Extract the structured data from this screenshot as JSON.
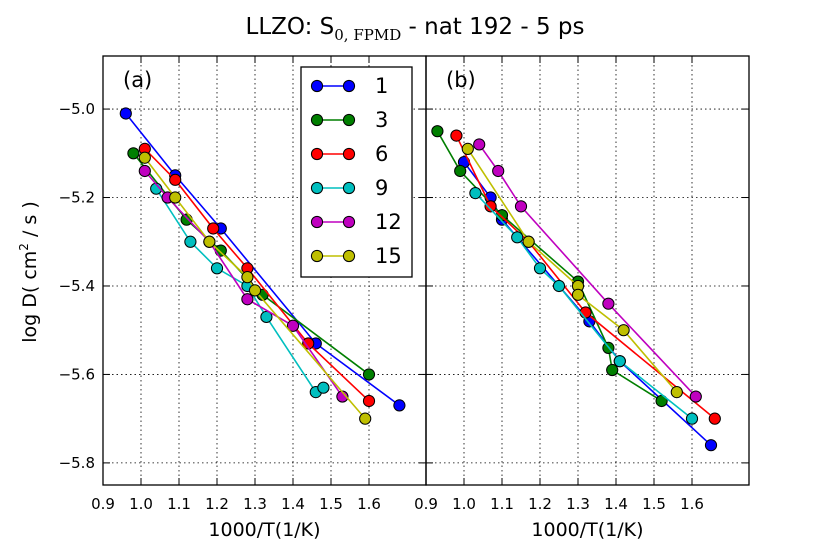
{
  "chart_data": [
    {
      "type": "line",
      "panel": "(a)",
      "title": "LLZO: S0,FPMD - nat 192 - 5 ps",
      "xlabel": "1000/T(1/K)",
      "ylabel": "log D( cm2 / s )",
      "xlim": [
        0.9,
        1.75
      ],
      "ylim": [
        -5.85,
        -4.88
      ],
      "grid": true,
      "legend": "top-right",
      "series": [
        {
          "name": "1",
          "color": "#0000ff",
          "x": [
            0.96,
            1.09,
            1.21,
            1.46,
            1.68
          ],
          "y": [
            -5.01,
            -5.15,
            -5.27,
            -5.53,
            -5.67
          ]
        },
        {
          "name": "3",
          "color": "#007f00",
          "x": [
            0.98,
            1.12,
            1.21,
            1.32,
            1.6
          ],
          "y": [
            -5.1,
            -5.25,
            -5.32,
            -5.42,
            -5.6
          ]
        },
        {
          "name": "6",
          "color": "#ff0000",
          "x": [
            1.01,
            1.09,
            1.19,
            1.28,
            1.44,
            1.6
          ],
          "y": [
            -5.09,
            -5.16,
            -5.27,
            -5.36,
            -5.53,
            -5.66
          ]
        },
        {
          "name": "9",
          "color": "#00bfbf",
          "x": [
            1.04,
            1.13,
            1.2,
            1.28,
            1.33,
            1.46,
            1.48
          ],
          "y": [
            -5.18,
            -5.3,
            -5.36,
            -5.4,
            -5.47,
            -5.64,
            -5.63
          ]
        },
        {
          "name": "12",
          "color": "#bf00bf",
          "x": [
            1.01,
            1.07,
            1.18,
            1.28,
            1.4,
            1.53
          ],
          "y": [
            -5.14,
            -5.2,
            -5.3,
            -5.43,
            -5.49,
            -5.65
          ]
        },
        {
          "name": "15",
          "color": "#bfbf00",
          "x": [
            1.01,
            1.09,
            1.18,
            1.28,
            1.3,
            1.59
          ],
          "y": [
            -5.11,
            -5.2,
            -5.3,
            -5.38,
            -5.41,
            -5.7
          ]
        }
      ]
    },
    {
      "type": "line",
      "panel": "(b)",
      "xlabel": "1000/T(1/K)",
      "xlim": [
        0.9,
        1.75
      ],
      "ylim": [
        -5.85,
        -4.88
      ],
      "grid": true,
      "series": [
        {
          "name": "1",
          "color": "#0000ff",
          "x": [
            1.0,
            1.07,
            1.1,
            1.33,
            1.41,
            1.65
          ],
          "y": [
            -5.12,
            -5.2,
            -5.25,
            -5.48,
            -5.57,
            -5.76
          ]
        },
        {
          "name": "3",
          "color": "#007f00",
          "x": [
            0.93,
            0.99,
            1.1,
            1.3,
            1.38,
            1.39,
            1.52
          ],
          "y": [
            -5.05,
            -5.14,
            -5.24,
            -5.39,
            -5.54,
            -5.59,
            -5.66
          ]
        },
        {
          "name": "6",
          "color": "#ff0000",
          "x": [
            0.98,
            1.07,
            1.17,
            1.32,
            1.66
          ],
          "y": [
            -5.06,
            -5.22,
            -5.3,
            -5.46,
            -5.7
          ]
        },
        {
          "name": "9",
          "color": "#00bfbf",
          "x": [
            1.03,
            1.14,
            1.2,
            1.25,
            1.41,
            1.6
          ],
          "y": [
            -5.19,
            -5.29,
            -5.36,
            -5.4,
            -5.57,
            -5.7
          ]
        },
        {
          "name": "12",
          "color": "#bf00bf",
          "x": [
            1.04,
            1.09,
            1.15,
            1.38,
            1.61
          ],
          "y": [
            -5.08,
            -5.14,
            -5.22,
            -5.44,
            -5.65
          ]
        },
        {
          "name": "15",
          "color": "#bfbf00",
          "x": [
            1.01,
            1.17,
            1.3,
            1.3,
            1.42,
            1.56
          ],
          "y": [
            -5.09,
            -5.3,
            -5.4,
            -5.42,
            -5.5,
            -5.64
          ]
        }
      ]
    }
  ],
  "title": {
    "main": "LLZO: S",
    "sub": "0, FPMD",
    "rest": " - nat 192 - 5 ps"
  },
  "ylabel": {
    "main": "log D( cm",
    "sup": "2",
    "rest": " / s )"
  },
  "xticks": [
    "0.9",
    "1.0",
    "1.1",
    "1.2",
    "1.3",
    "1.4",
    "1.5",
    "1.6"
  ],
  "yticks": [
    "−5.0",
    "−5.2",
    "−5.4",
    "−5.6",
    "−5.8"
  ]
}
